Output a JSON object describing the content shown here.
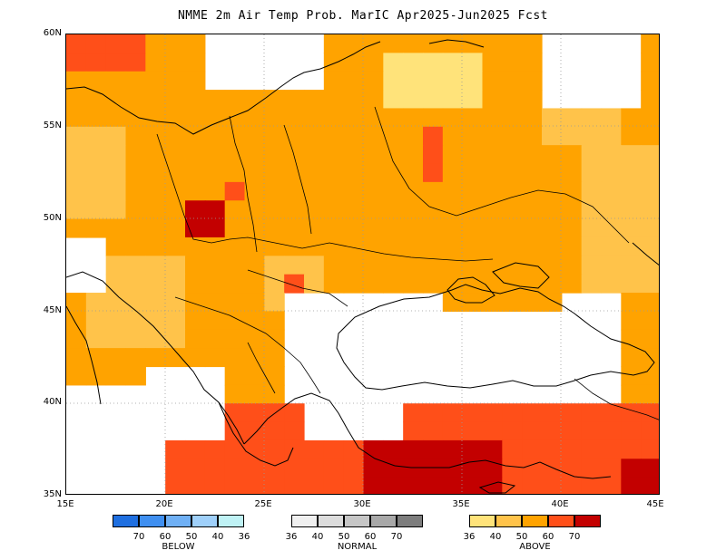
{
  "title": "NMME 2m Air Temp Prob. MarIC  Apr2025-Jun2025 Fcst",
  "lat_ticks": [
    "60N",
    "55N",
    "50N",
    "45N",
    "40N",
    "35N"
  ],
  "lon_ticks": [
    "15E",
    "20E",
    "25E",
    "30E",
    "35E",
    "40E",
    "45E"
  ],
  "legend": {
    "below": {
      "caption": "BELOW",
      "ticks": [
        "70",
        "60",
        "50",
        "40",
        "36"
      ],
      "colors": [
        "#1f6fe0",
        "#3f8ff0",
        "#6fb0f5",
        "#9fd0fa",
        "#bff2f5"
      ]
    },
    "normal": {
      "caption": "NORMAL",
      "ticks": [
        "36",
        "40",
        "50",
        "60",
        "70"
      ],
      "colors": [
        "#efefef",
        "#dcdcdc",
        "#c6c6c6",
        "#a8a8a8",
        "#7d7d7d"
      ]
    },
    "above": {
      "caption": "ABOVE",
      "ticks": [
        "36",
        "40",
        "50",
        "60",
        "70"
      ],
      "colors": [
        "#ffe37a",
        "#ffc34a",
        "#ffa300",
        "#ff4f19",
        "#c30000"
      ]
    }
  }
}
